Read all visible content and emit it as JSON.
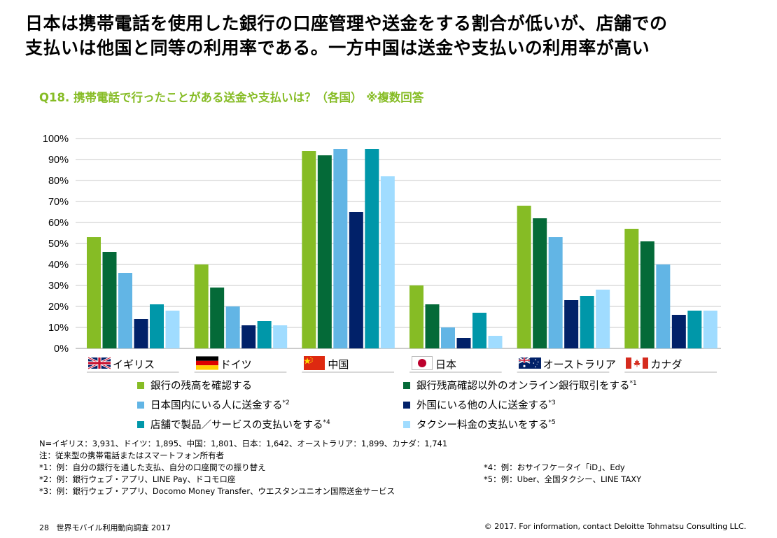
{
  "title_lines": [
    "日本は携帯電話を使用した銀行の口座管理や送金をする割合が低いが、店舗での",
    "支払いは他国と同等の利用率である。一方中国は送金や支払いの利用率が高い"
  ],
  "question": "Q18. 携帯電話で行ったことがある送金や支払いは？（各国） ※複数回答",
  "chart_data": {
    "type": "bar",
    "categories": [
      "イギリス",
      "ドイツ",
      "中国",
      "日本",
      "オーストラリア",
      "カナダ"
    ],
    "flags": [
      "uk-flag-icon",
      "germany-flag-icon",
      "china-flag-icon",
      "japan-flag-icon",
      "australia-flag-icon",
      "canada-flag-icon"
    ],
    "y_ticks": [
      "0%",
      "10%",
      "20%",
      "30%",
      "40%",
      "50%",
      "60%",
      "70%",
      "80%",
      "90%",
      "100%"
    ],
    "ylim": [
      0,
      100
    ],
    "grid": true,
    "legend_position": "bottom",
    "series": [
      {
        "name": "銀行の残高を確認する",
        "note": "",
        "color": "#86BC25",
        "values": [
          53,
          40,
          94,
          30,
          68,
          57
        ]
      },
      {
        "name": "銀行残高確認以外のオンライン銀行取引をする",
        "note": "*1",
        "color": "#046A38",
        "values": [
          46,
          29,
          92,
          21,
          62,
          51
        ]
      },
      {
        "name": "日本国内にいる人に送金する",
        "note": "*2",
        "color": "#62B5E5",
        "values": [
          36,
          20,
          95,
          10,
          53,
          40
        ]
      },
      {
        "name": "外国にいる他の人に送金する",
        "note": "*3",
        "color": "#012169",
        "values": [
          14,
          11,
          65,
          5,
          23,
          16
        ]
      },
      {
        "name": "店舗で製品／サービスの支払いをする",
        "note": "*4",
        "color": "#0097A9",
        "values": [
          21,
          13,
          95,
          17,
          25,
          18
        ]
      },
      {
        "name": "タクシー料金の支払いをする",
        "note": "*5",
        "color": "#A0DCFF",
        "values": [
          18,
          11,
          82,
          6,
          28,
          18
        ]
      }
    ]
  },
  "notes": [
    "N=イギリス：3,931、ドイツ：1,895、中国：1,801、日本：1,642、オーストラリア：1,899、カナダ：1,741",
    "注：従来型の携帯電話またはスマートフォン所有者",
    "*1：例：自分の銀行を通した支払、自分の口座間での振り替え",
    "*2：例：銀行ウェブ・アプリ、LINE Pay、ドコモロ座",
    "*3：例：銀行ウェブ・アプリ、Docomo Money Transfer、ウエスタンユニオン国際送金サービス"
  ],
  "notes_right": [
    "*4：例：おサイフケータイ「iD」、Edy",
    "*5：例：Uber、全国タクシー、LINE TAXY"
  ],
  "footer": {
    "page": "28",
    "report": "世界モバイル利用動向調査 2017",
    "copyright": "© 2017. For information, contact Deloitte Tohmatsu Consulting LLC."
  }
}
